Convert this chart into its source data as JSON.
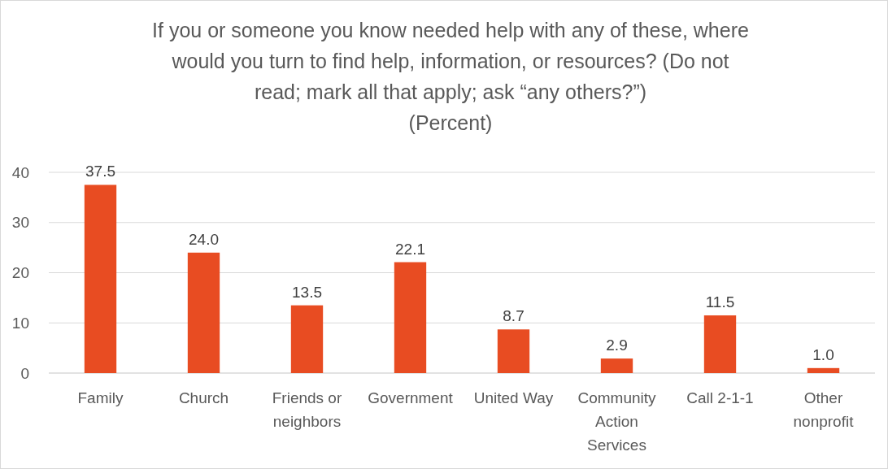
{
  "chart_data": {
    "type": "bar",
    "title": "If you or someone you know needed help with any of these, where would you turn to find help, information, or resources? (Do not read; mark all that apply; ask “any others?”)",
    "subtitle": "(Percent)",
    "categories": [
      "Family",
      "Church",
      "Friends or neighbors",
      "Government",
      "United Way",
      "Community Action Services",
      "Call 2-1-1",
      "Other nonprofit"
    ],
    "values": [
      37.5,
      24.0,
      13.5,
      22.1,
      8.7,
      2.9,
      11.5,
      1.0
    ],
    "value_labels": [
      "37.5",
      "24.0",
      "13.5",
      "22.1",
      "8.7",
      "2.9",
      "11.5",
      "1.0"
    ],
    "color": "#e84c22",
    "ylim": [
      0,
      40
    ],
    "yticks": [
      0,
      10,
      20,
      30,
      40
    ],
    "grid": "y"
  }
}
